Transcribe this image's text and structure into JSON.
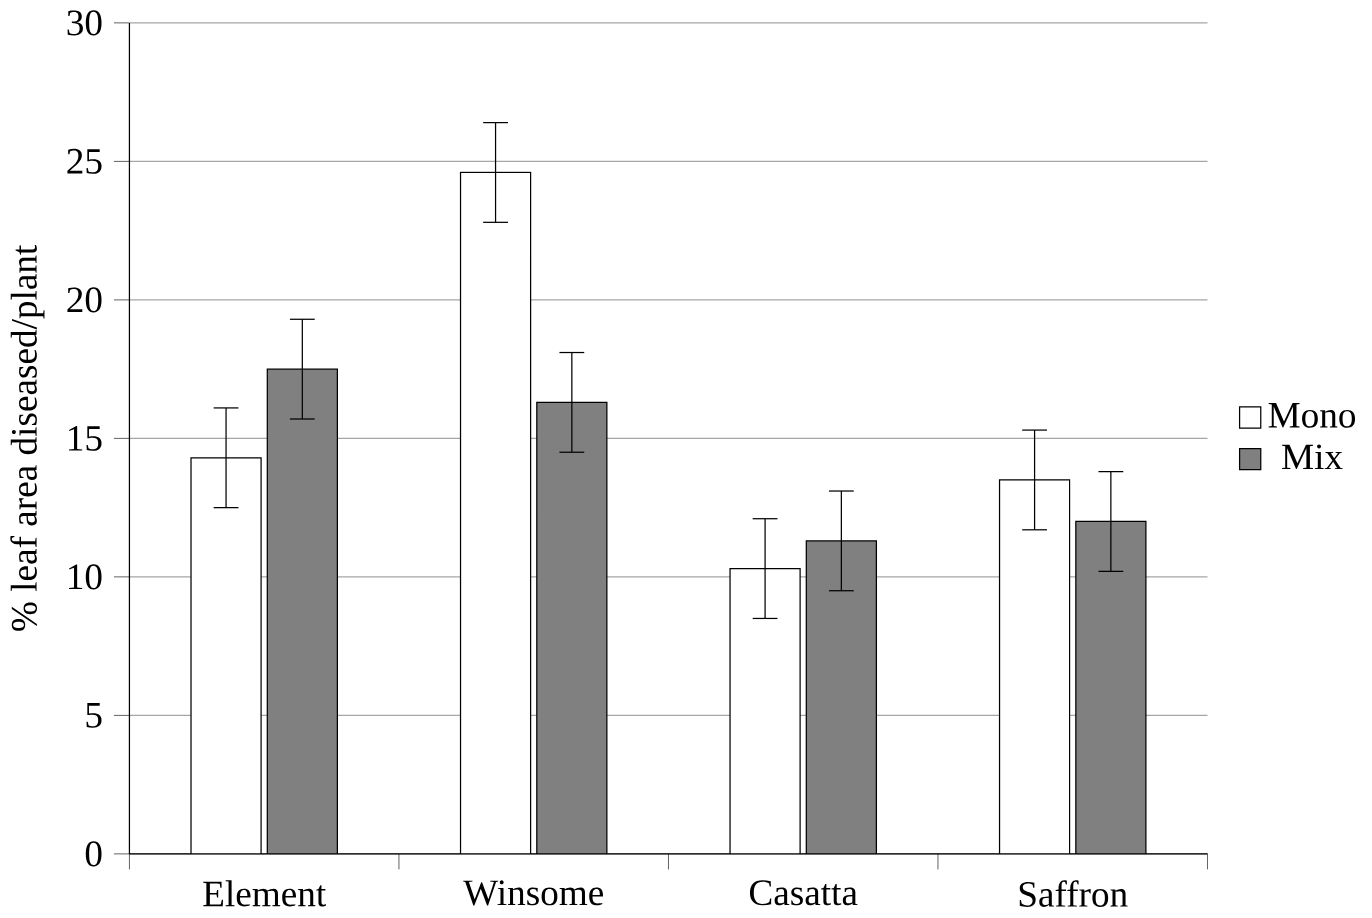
{
  "chart_data": {
    "type": "bar",
    "ylabel": "% leaf area diseased/plant",
    "categories": [
      "Element",
      "Winsome",
      "Casatta",
      "Saffron"
    ],
    "series": [
      {
        "name": "Mono",
        "color": "#ffffff",
        "values": [
          14.3,
          24.6,
          10.3,
          13.5
        ],
        "errors": [
          1.8,
          1.8,
          1.8,
          1.8
        ]
      },
      {
        "name": "Mix",
        "color": "#808080",
        "values": [
          17.5,
          16.3,
          11.3,
          12.0
        ],
        "errors": [
          1.8,
          1.8,
          1.8,
          1.8
        ]
      }
    ],
    "ylim": [
      0,
      30
    ],
    "yticks": [
      0,
      5,
      10,
      15,
      20,
      25,
      30
    ],
    "grid": "y",
    "legend": "right"
  }
}
